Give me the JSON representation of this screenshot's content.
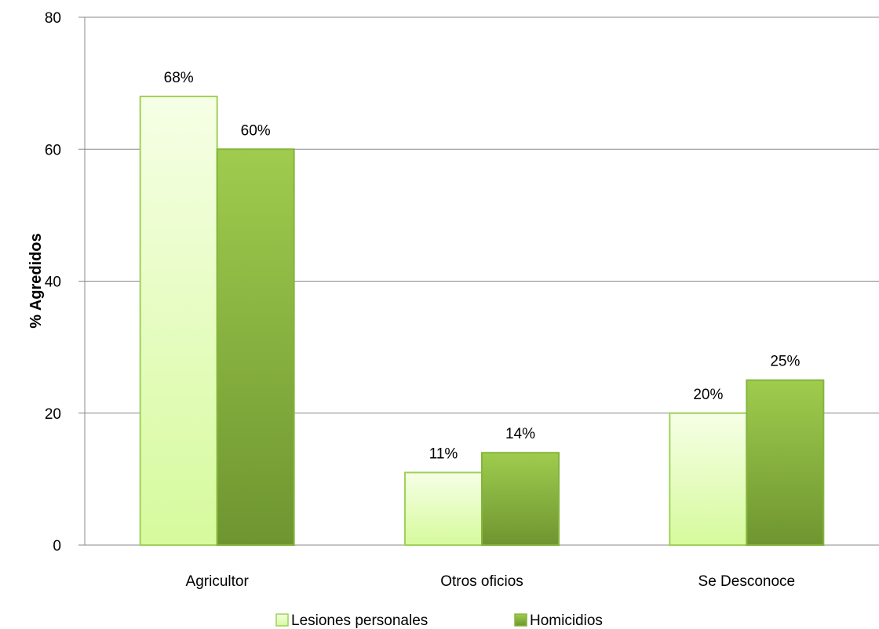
{
  "chart_data": {
    "type": "bar",
    "title": "",
    "xlabel": "",
    "ylabel": "% Agredidos",
    "ylim": [
      0,
      80
    ],
    "yticks": [
      0,
      20,
      40,
      60,
      80
    ],
    "grid": true,
    "legend_position": "bottom",
    "categories": [
      "Agricultor",
      "Otros oficios",
      "Se Desconoce"
    ],
    "series": [
      {
        "name": "Lesiones personales",
        "values": [
          68,
          11,
          20
        ],
        "labels": [
          "68%",
          "11%",
          "20%"
        ],
        "color": "#e6fcc0"
      },
      {
        "name": "Homicidios",
        "values": [
          60,
          14,
          25
        ],
        "labels": [
          "60%",
          "14%",
          "25%"
        ],
        "color": "#8ab84a"
      }
    ]
  },
  "colors": {
    "light_top": "#f6ffe6",
    "light_bottom": "#d6fa9c",
    "light_stroke": "#9fd15a",
    "dark_top": "#9fcc4e",
    "dark_bottom": "#6e9530",
    "dark_stroke": "#84b53e",
    "grid": "#888888"
  }
}
